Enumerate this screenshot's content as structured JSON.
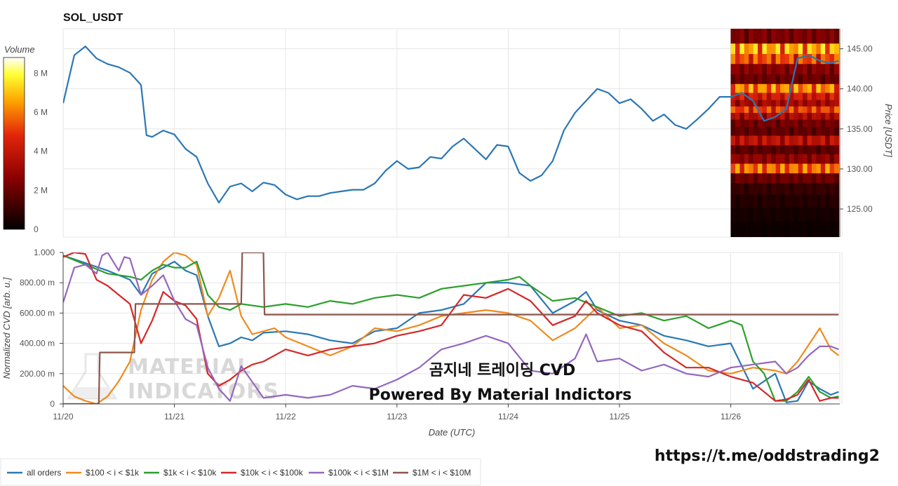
{
  "chart_data": [
    {
      "type": "line",
      "title": "SOL_USDT",
      "ylabel": "Price [USDT]",
      "ylim": [
        121.5,
        147.5
      ],
      "yticks": [
        125,
        130,
        135,
        140,
        145
      ],
      "ytick_labels": [
        "125.00",
        "130.00",
        "135.00",
        "140.00",
        "145.00"
      ],
      "x_days": [
        0,
        1,
        2,
        3,
        4,
        5,
        6,
        7
      ],
      "x_tick_labels": [
        "11/20",
        "11/21",
        "11/22",
        "11/23",
        "11/24",
        "11/25",
        "11/26"
      ],
      "series": [
        {
          "name": "SOL_USDT price",
          "color": "#2b77b3",
          "x": [
            0,
            0.1,
            0.2,
            0.3,
            0.4,
            0.5,
            0.6,
            0.7,
            0.75,
            0.8,
            0.9,
            1.0,
            1.1,
            1.2,
            1.3,
            1.4,
            1.5,
            1.6,
            1.7,
            1.8,
            1.9,
            2.0,
            2.1,
            2.2,
            2.3,
            2.4,
            2.5,
            2.6,
            2.7,
            2.8,
            2.9,
            3.0,
            3.1,
            3.2,
            3.3,
            3.4,
            3.5,
            3.6,
            3.7,
            3.8,
            3.9,
            4.0,
            4.1,
            4.2,
            4.3,
            4.4,
            4.5,
            4.6,
            4.7,
            4.8,
            4.9,
            5.0,
            5.1,
            5.2,
            5.3,
            5.4,
            5.5,
            5.6,
            5.7,
            5.8,
            5.9,
            6.0,
            6.1,
            6.2,
            6.3,
            6.4,
            6.5,
            6.6,
            6.7,
            6.8,
            6.9,
            6.97
          ],
          "values": [
            138.2,
            144.2,
            145.3,
            143.8,
            143.1,
            142.7,
            142.0,
            140.5,
            134.2,
            134.0,
            134.8,
            134.3,
            132.5,
            131.5,
            128.2,
            125.8,
            127.8,
            128.2,
            127.2,
            128.3,
            128.0,
            126.8,
            126.2,
            126.6,
            126.6,
            127.0,
            127.2,
            127.4,
            127.4,
            128.2,
            129.8,
            131.0,
            130.0,
            130.2,
            131.5,
            131.3,
            132.8,
            133.8,
            132.5,
            131.2,
            133.0,
            132.8,
            129.5,
            128.5,
            129.2,
            131.0,
            134.8,
            137.0,
            138.5,
            140.0,
            139.5,
            138.2,
            138.7,
            137.5,
            136.0,
            136.8,
            135.5,
            135.0,
            136.2,
            137.5,
            139.0,
            139.0,
            139.5,
            138.5,
            136.0,
            136.5,
            137.5,
            143.8,
            144.2,
            143.5,
            143.2,
            143.5
          ]
        }
      ],
      "heatmap": {
        "label": "Volume",
        "colorbar_ticks": [
          "0",
          "2 M",
          "4 M",
          "6 M",
          "8 M"
        ],
        "colorbar_values": [
          0,
          2,
          4,
          6,
          8
        ],
        "colorbar_max": 8.8,
        "x_start": 6.0,
        "x_end": 6.97,
        "price_levels": [
          146.4,
          144.9,
          143.8,
          142.4,
          141.2,
          140.0,
          139.0,
          138.2,
          137.4,
          136.6,
          135.7,
          134.8,
          133.5,
          132.4,
          131.3,
          130.0,
          128.9,
          127.6,
          126.0,
          124.3,
          122.6
        ],
        "level_intensity": [
          2.8,
          7.8,
          6.2,
          3.0,
          2.4,
          7.2,
          5.0,
          3.8,
          6.0,
          4.0,
          2.6,
          2.2,
          4.4,
          2.0,
          3.2,
          6.8,
          2.4,
          1.2,
          0.8,
          0.5,
          0.3
        ]
      }
    },
    {
      "type": "line",
      "title": "",
      "xlabel": "Date (UTC)",
      "ylabel": "Normalized CVD [arb. u.]",
      "ylim": [
        0,
        1
      ],
      "yticks": [
        0,
        0.2,
        0.4,
        0.6,
        0.8,
        1.0
      ],
      "ytick_labels": [
        "0",
        "200.00 m",
        "400.00 m",
        "600.00 m",
        "800.00 m",
        "1.000"
      ],
      "x_days": [
        0,
        1,
        2,
        3,
        4,
        5,
        6,
        7
      ],
      "x_tick_labels": [
        "11/20",
        "11/21",
        "11/22",
        "11/23",
        "11/24",
        "11/25",
        "11/26"
      ],
      "series": [
        {
          "name": "all orders",
          "color": "#2b77b3",
          "x": [
            0,
            0.2,
            0.4,
            0.6,
            0.7,
            0.8,
            0.9,
            1.0,
            1.1,
            1.2,
            1.3,
            1.4,
            1.5,
            1.6,
            1.7,
            1.8,
            2.0,
            2.2,
            2.4,
            2.6,
            2.8,
            3.0,
            3.2,
            3.4,
            3.6,
            3.8,
            4.0,
            4.2,
            4.4,
            4.6,
            4.7,
            4.8,
            5.0,
            5.2,
            5.4,
            5.6,
            5.8,
            6.0,
            6.2,
            6.4,
            6.5,
            6.6,
            6.7,
            6.8,
            6.9,
            6.97
          ],
          "values": [
            0.98,
            0.93,
            0.88,
            0.82,
            0.72,
            0.86,
            0.9,
            0.94,
            0.88,
            0.85,
            0.58,
            0.38,
            0.4,
            0.44,
            0.42,
            0.47,
            0.48,
            0.46,
            0.42,
            0.4,
            0.48,
            0.5,
            0.6,
            0.62,
            0.66,
            0.8,
            0.8,
            0.78,
            0.6,
            0.68,
            0.74,
            0.62,
            0.55,
            0.52,
            0.45,
            0.42,
            0.38,
            0.4,
            0.1,
            0.2,
            0.01,
            0.02,
            0.15,
            0.1,
            0.06,
            0.08
          ]
        },
        {
          "name": "$100 < i < $1k",
          "color": "#f08a1e",
          "x": [
            0,
            0.1,
            0.2,
            0.3,
            0.4,
            0.5,
            0.6,
            0.7,
            0.8,
            0.9,
            1.0,
            1.1,
            1.2,
            1.3,
            1.4,
            1.5,
            1.6,
            1.7,
            1.8,
            1.9,
            2.0,
            2.2,
            2.4,
            2.6,
            2.8,
            3.0,
            3.2,
            3.4,
            3.6,
            3.8,
            4.0,
            4.2,
            4.4,
            4.6,
            4.8,
            5.0,
            5.2,
            5.4,
            5.6,
            5.8,
            6.0,
            6.2,
            6.4,
            6.5,
            6.6,
            6.8,
            6.9,
            6.97
          ],
          "values": [
            0.12,
            0.05,
            0.02,
            0.0,
            0.05,
            0.15,
            0.28,
            0.62,
            0.82,
            0.94,
            1.0,
            0.98,
            0.92,
            0.58,
            0.7,
            0.88,
            0.58,
            0.46,
            0.48,
            0.5,
            0.44,
            0.38,
            0.32,
            0.38,
            0.5,
            0.48,
            0.52,
            0.58,
            0.6,
            0.62,
            0.6,
            0.55,
            0.42,
            0.5,
            0.64,
            0.5,
            0.52,
            0.4,
            0.32,
            0.22,
            0.2,
            0.24,
            0.22,
            0.2,
            0.28,
            0.5,
            0.36,
            0.32
          ]
        },
        {
          "name": "$1k < i < $10k",
          "color": "#2ca02c",
          "x": [
            0,
            0.2,
            0.4,
            0.6,
            0.7,
            0.8,
            0.9,
            1.0,
            1.1,
            1.2,
            1.3,
            1.4,
            1.5,
            1.6,
            1.8,
            2.0,
            2.2,
            2.4,
            2.6,
            2.8,
            3.0,
            3.2,
            3.4,
            3.6,
            3.8,
            4.0,
            4.1,
            4.2,
            4.4,
            4.6,
            4.8,
            5.0,
            5.2,
            5.4,
            5.6,
            5.8,
            6.0,
            6.1,
            6.2,
            6.3,
            6.4,
            6.5,
            6.6,
            6.7,
            6.8,
            6.9,
            6.97
          ],
          "values": [
            0.98,
            0.92,
            0.86,
            0.84,
            0.82,
            0.88,
            0.92,
            0.9,
            0.9,
            0.94,
            0.72,
            0.64,
            0.62,
            0.66,
            0.64,
            0.66,
            0.64,
            0.68,
            0.66,
            0.7,
            0.72,
            0.7,
            0.76,
            0.78,
            0.8,
            0.82,
            0.84,
            0.78,
            0.68,
            0.7,
            0.64,
            0.58,
            0.6,
            0.55,
            0.58,
            0.5,
            0.55,
            0.52,
            0.28,
            0.2,
            0.02,
            0.02,
            0.08,
            0.18,
            0.08,
            0.04,
            0.05
          ]
        },
        {
          "name": "$10k < i < $100k",
          "color": "#d62728",
          "x": [
            0,
            0.1,
            0.2,
            0.3,
            0.4,
            0.5,
            0.6,
            0.7,
            0.8,
            0.9,
            1.0,
            1.1,
            1.2,
            1.3,
            1.4,
            1.5,
            1.6,
            1.7,
            1.8,
            2.0,
            2.2,
            2.4,
            2.6,
            2.8,
            3.0,
            3.2,
            3.4,
            3.5,
            3.6,
            3.8,
            4.0,
            4.2,
            4.4,
            4.6,
            4.7,
            4.8,
            5.0,
            5.2,
            5.4,
            5.6,
            5.8,
            6.0,
            6.2,
            6.4,
            6.5,
            6.6,
            6.7,
            6.8,
            6.9,
            6.97
          ],
          "values": [
            0.97,
            1.0,
            0.99,
            0.82,
            0.78,
            0.72,
            0.66,
            0.4,
            0.55,
            0.74,
            0.68,
            0.65,
            0.56,
            0.2,
            0.12,
            0.16,
            0.22,
            0.26,
            0.28,
            0.36,
            0.32,
            0.36,
            0.38,
            0.4,
            0.45,
            0.48,
            0.52,
            0.62,
            0.72,
            0.7,
            0.76,
            0.68,
            0.52,
            0.58,
            0.68,
            0.6,
            0.52,
            0.48,
            0.34,
            0.24,
            0.24,
            0.18,
            0.14,
            0.02,
            0.03,
            0.06,
            0.16,
            0.02,
            0.04,
            0.04
          ]
        },
        {
          "name": "$100k < i < $1M",
          "color": "#9467bd",
          "x": [
            0,
            0.1,
            0.2,
            0.3,
            0.35,
            0.4,
            0.5,
            0.55,
            0.6,
            0.7,
            0.8,
            0.9,
            1.0,
            1.1,
            1.2,
            1.3,
            1.4,
            1.5,
            1.6,
            1.8,
            2.0,
            2.2,
            2.4,
            2.6,
            2.8,
            3.0,
            3.2,
            3.4,
            3.6,
            3.8,
            4.0,
            4.2,
            4.4,
            4.6,
            4.7,
            4.8,
            5.0,
            5.2,
            5.4,
            5.6,
            5.8,
            6.0,
            6.2,
            6.4,
            6.5,
            6.6,
            6.7,
            6.8,
            6.9,
            6.97
          ],
          "values": [
            0.67,
            0.9,
            0.92,
            0.86,
            0.98,
            1.0,
            0.88,
            0.97,
            0.96,
            0.72,
            0.78,
            0.85,
            0.68,
            0.56,
            0.52,
            0.24,
            0.1,
            0.02,
            0.25,
            0.04,
            0.06,
            0.04,
            0.06,
            0.12,
            0.1,
            0.16,
            0.24,
            0.36,
            0.4,
            0.45,
            0.4,
            0.22,
            0.2,
            0.3,
            0.46,
            0.28,
            0.3,
            0.22,
            0.26,
            0.2,
            0.18,
            0.24,
            0.26,
            0.28,
            0.2,
            0.24,
            0.32,
            0.38,
            0.38,
            0.36
          ]
        },
        {
          "name": "$1M < i < $10M",
          "color": "#8c564b",
          "x": [
            0,
            0.32,
            0.33,
            0.64,
            0.65,
            1.6,
            1.61,
            1.8,
            1.81,
            6.97
          ],
          "values": [
            0,
            0,
            0.34,
            0.34,
            0.66,
            0.66,
            1.0,
            1.0,
            0.59,
            0.59
          ]
        }
      ],
      "overlay_text": [
        "곰지네 트레이딩 CVD",
        "Powered By Material Indictors"
      ],
      "watermark": [
        "MATERIAL",
        "INDICATORS"
      ]
    }
  ],
  "footer_url": "https://t.me/oddstrading2"
}
